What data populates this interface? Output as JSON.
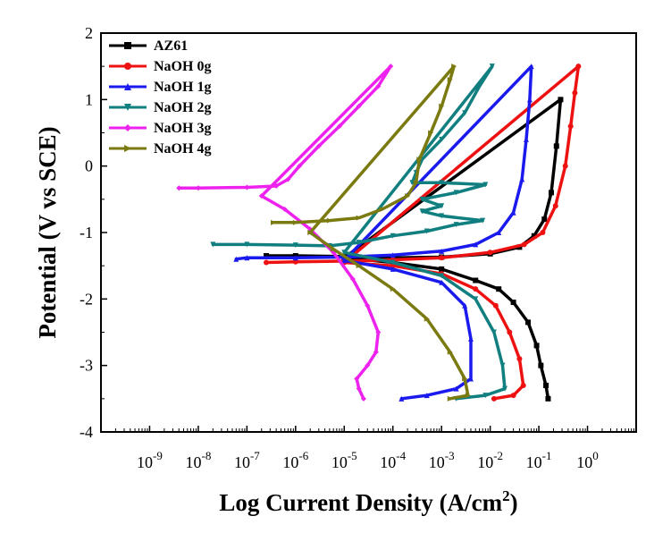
{
  "chart_data": {
    "type": "line",
    "title": "",
    "xlabel_main": "Log Current Density (A/cm",
    "xlabel_sup": "2",
    "xlabel_close": ")",
    "ylabel": "Potential (V vs SCE)",
    "x_scale": "log",
    "xlim": [
      1e-10,
      10
    ],
    "ylim": [
      -4,
      2
    ],
    "x_ticks": [
      {
        "base": "10",
        "exp": "-9",
        "value": 1e-09
      },
      {
        "base": "10",
        "exp": "-8",
        "value": 1e-08
      },
      {
        "base": "10",
        "exp": "-7",
        "value": 1e-07
      },
      {
        "base": "10",
        "exp": "-6",
        "value": 1e-06
      },
      {
        "base": "10",
        "exp": "-5",
        "value": 1e-05
      },
      {
        "base": "10",
        "exp": "-4",
        "value": 0.0001
      },
      {
        "base": "10",
        "exp": "-3",
        "value": 0.001
      },
      {
        "base": "10",
        "exp": "-2",
        "value": 0.01
      },
      {
        "base": "10",
        "exp": "-1",
        "value": 0.1
      },
      {
        "base": "10",
        "exp": "0",
        "value": 1
      }
    ],
    "y_ticks": [
      {
        "label": "2",
        "value": 2
      },
      {
        "label": "1",
        "value": 1
      },
      {
        "label": "0",
        "value": 0
      },
      {
        "label": "-1",
        "value": -1
      },
      {
        "label": "-2",
        "value": -2
      },
      {
        "label": "-3",
        "value": -3
      },
      {
        "label": "-4",
        "value": -4
      }
    ],
    "grid": false,
    "legend_position": "top-left",
    "series": [
      {
        "name": "AZ61",
        "color": "#000000",
        "marker": "square",
        "points": [
          [
            2.5e-07,
            -1.35
          ],
          [
            1e-06,
            -1.35
          ],
          [
            1e-05,
            -1.36
          ],
          [
            0.0001,
            -1.38
          ],
          [
            0.001,
            -1.37
          ],
          [
            0.01,
            -1.32
          ],
          [
            0.04,
            -1.22
          ],
          [
            0.08,
            -1.05
          ],
          [
            0.13,
            -0.8
          ],
          [
            0.18,
            -0.4
          ],
          [
            0.23,
            0.3
          ],
          [
            0.28,
            1.0
          ],
          [
            1e-05,
            -1.38
          ],
          [
            0.0001,
            -1.45
          ],
          [
            0.001,
            -1.55
          ],
          [
            0.005,
            -1.72
          ],
          [
            0.015,
            -1.85
          ],
          [
            0.03,
            -2.05
          ],
          [
            0.06,
            -2.35
          ],
          [
            0.09,
            -2.7
          ],
          [
            0.11,
            -3.0
          ],
          [
            0.14,
            -3.3
          ],
          [
            0.155,
            -3.5
          ]
        ]
      },
      {
        "name": "NaOH 0g",
        "color": "#ee1111",
        "marker": "circle",
        "points": [
          [
            2.5e-07,
            -1.45
          ],
          [
            1e-06,
            -1.44
          ],
          [
            1e-05,
            -1.43
          ],
          [
            0.0001,
            -1.41
          ],
          [
            0.001,
            -1.38
          ],
          [
            0.01,
            -1.3
          ],
          [
            0.05,
            -1.18
          ],
          [
            0.12,
            -1.0
          ],
          [
            0.22,
            -0.6
          ],
          [
            0.35,
            0.0
          ],
          [
            0.45,
            0.6
          ],
          [
            0.55,
            1.1
          ],
          [
            0.65,
            1.5
          ],
          [
            1e-05,
            -1.45
          ],
          [
            0.0001,
            -1.5
          ],
          [
            0.001,
            -1.62
          ],
          [
            0.005,
            -1.85
          ],
          [
            0.013,
            -2.1
          ],
          [
            0.025,
            -2.5
          ],
          [
            0.04,
            -2.9
          ],
          [
            0.048,
            -3.3
          ],
          [
            0.03,
            -3.45
          ],
          [
            0.012,
            -3.5
          ]
        ]
      },
      {
        "name": "NaOH 1g",
        "color": "#1a1aee",
        "marker": "triangle-up",
        "points": [
          [
            6e-08,
            -1.4
          ],
          [
            1e-07,
            -1.38
          ],
          [
            1e-06,
            -1.38
          ],
          [
            1e-05,
            -1.37
          ],
          [
            0.0001,
            -1.34
          ],
          [
            0.001,
            -1.28
          ],
          [
            0.005,
            -1.18
          ],
          [
            0.015,
            -1.0
          ],
          [
            0.03,
            -0.7
          ],
          [
            0.045,
            -0.2
          ],
          [
            0.055,
            0.4
          ],
          [
            0.065,
            1.0
          ],
          [
            0.07,
            1.5
          ],
          [
            1e-05,
            -1.42
          ],
          [
            0.0001,
            -1.55
          ],
          [
            0.001,
            -1.75
          ],
          [
            0.003,
            -2.1
          ],
          [
            0.004,
            -2.6
          ],
          [
            0.004,
            -3.2
          ],
          [
            0.002,
            -3.35
          ],
          [
            0.0005,
            -3.45
          ],
          [
            0.00015,
            -3.5
          ]
        ]
      },
      {
        "name": "NaOH 2g",
        "color": "#117f7f",
        "marker": "triangle-down",
        "points": [
          [
            2e-08,
            -1.18
          ],
          [
            1e-07,
            -1.18
          ],
          [
            1e-06,
            -1.19
          ],
          [
            5e-06,
            -1.2
          ],
          [
            2e-05,
            -1.15
          ],
          [
            0.0001,
            -1.05
          ],
          [
            0.0005,
            -0.98
          ],
          [
            0.002,
            -0.88
          ],
          [
            0.007,
            -0.82
          ],
          [
            0.001,
            -0.75
          ],
          [
            0.0004,
            -0.68
          ],
          [
            0.001,
            -0.6
          ],
          [
            0.0004,
            -0.5
          ],
          [
            0.002,
            -0.4
          ],
          [
            0.008,
            -0.28
          ],
          [
            0.001,
            -0.25
          ],
          [
            0.00025,
            -0.25
          ],
          [
            0.0003,
            -0.1
          ],
          [
            0.0004,
            0.1
          ],
          [
            0.001,
            0.4
          ],
          [
            0.003,
            0.8
          ],
          [
            0.006,
            1.2
          ],
          [
            0.011,
            1.5
          ],
          [
            1e-05,
            -1.3
          ],
          [
            0.0001,
            -1.45
          ],
          [
            0.001,
            -1.65
          ],
          [
            0.005,
            -2.0
          ],
          [
            0.012,
            -2.5
          ],
          [
            0.018,
            -3.0
          ],
          [
            0.02,
            -3.35
          ],
          [
            0.008,
            -3.45
          ],
          [
            0.002,
            -3.5
          ]
        ]
      },
      {
        "name": "NaOH 3g",
        "color": "#ee22ee",
        "marker": "diamond",
        "points": [
          [
            4e-09,
            -0.33
          ],
          [
            1e-08,
            -0.33
          ],
          [
            1e-07,
            -0.32
          ],
          [
            4e-07,
            -0.3
          ],
          [
            7e-07,
            -0.2
          ],
          [
            1.2e-06,
            0.0
          ],
          [
            3e-06,
            0.3
          ],
          [
            8e-06,
            0.6
          ],
          [
            2e-05,
            0.9
          ],
          [
            5e-05,
            1.2
          ],
          [
            9e-05,
            1.5
          ],
          [
            2e-07,
            -0.45
          ],
          [
            6e-07,
            -0.65
          ],
          [
            2e-06,
            -0.95
          ],
          [
            6e-06,
            -1.3
          ],
          [
            1.5e-05,
            -1.7
          ],
          [
            3e-05,
            -2.1
          ],
          [
            5e-05,
            -2.5
          ],
          [
            4.5e-05,
            -2.8
          ],
          [
            3e-05,
            -3.0
          ],
          [
            1.8e-05,
            -3.2
          ],
          [
            2e-05,
            -3.35
          ],
          [
            2.5e-05,
            -3.5
          ]
        ]
      },
      {
        "name": "NaOH 4g",
        "color": "#7a7a10",
        "marker": "triangle-right",
        "points": [
          [
            3.5e-07,
            -0.85
          ],
          [
            1e-06,
            -0.85
          ],
          [
            5e-06,
            -0.82
          ],
          [
            2e-05,
            -0.78
          ],
          [
            6e-05,
            -0.65
          ],
          [
            0.0002,
            -0.45
          ],
          [
            0.0003,
            -0.25
          ],
          [
            0.00035,
            0.1
          ],
          [
            0.0006,
            0.5
          ],
          [
            0.001,
            0.9
          ],
          [
            0.0015,
            1.3
          ],
          [
            0.0018,
            1.5
          ],
          [
            2e-06,
            -1.0
          ],
          [
            6e-06,
            -1.25
          ],
          [
            2e-05,
            -1.5
          ],
          [
            0.0001,
            -1.85
          ],
          [
            0.0005,
            -2.3
          ],
          [
            0.0015,
            -2.8
          ],
          [
            0.003,
            -3.2
          ],
          [
            0.0035,
            -3.45
          ],
          [
            0.0015,
            -3.5
          ]
        ]
      }
    ]
  }
}
